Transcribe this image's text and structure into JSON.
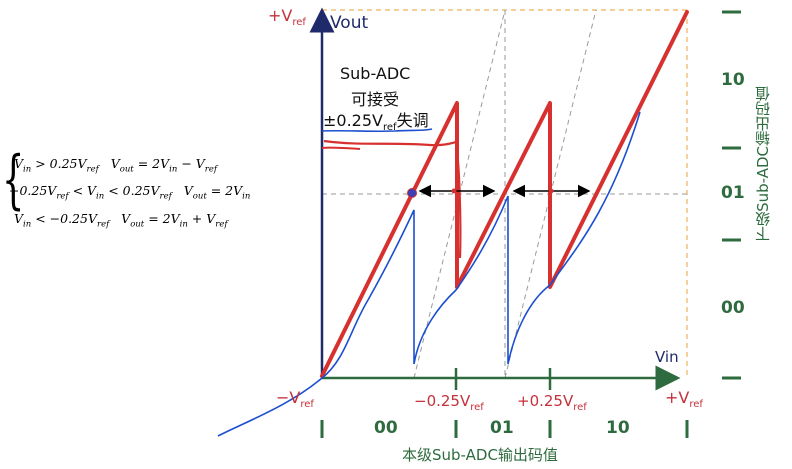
{
  "axes": {
    "y_axis_label": "Vout",
    "x_axis_label": "Vin",
    "plus_vref_base": "+V",
    "minus_vref_base": "−V",
    "ref_sub": "ref",
    "x_tick_minus": "−0.25V",
    "x_tick_plus": "+0.25V"
  },
  "annotation": {
    "line1": "Sub-ADC",
    "line2": "可接受",
    "line3_prefix": "±0.25V",
    "line3_sub": "ref",
    "line3_suffix": "失调"
  },
  "right_codes": [
    "10",
    "01",
    "00"
  ],
  "right_axis_title": "下级Sub-ADC输出码值",
  "bottom_codes": [
    "00",
    "01",
    "10"
  ],
  "bottom_axis_title": "本级Sub-ADC输出码值",
  "equations": {
    "row1": {
      "cond": "V_in > 0.25V_ref",
      "result": "V_out = 2V_in − V_ref"
    },
    "row2": {
      "cond": "−0.25V_ref < V_in < 0.25V_ref",
      "result": "V_out = 2V_in"
    },
    "row3": {
      "cond": "V_in < −0.25V_ref",
      "result": "V_out = 2V_in + V_ref"
    }
  },
  "colors": {
    "transfer_line": "#d6312f",
    "axis_navy": "#1f2a6b",
    "code_green": "#2e6b3e",
    "label_red": "#c5303b",
    "handdrawn_blue": "#1a4fd1",
    "guide_orange": "#f0b25a"
  }
}
